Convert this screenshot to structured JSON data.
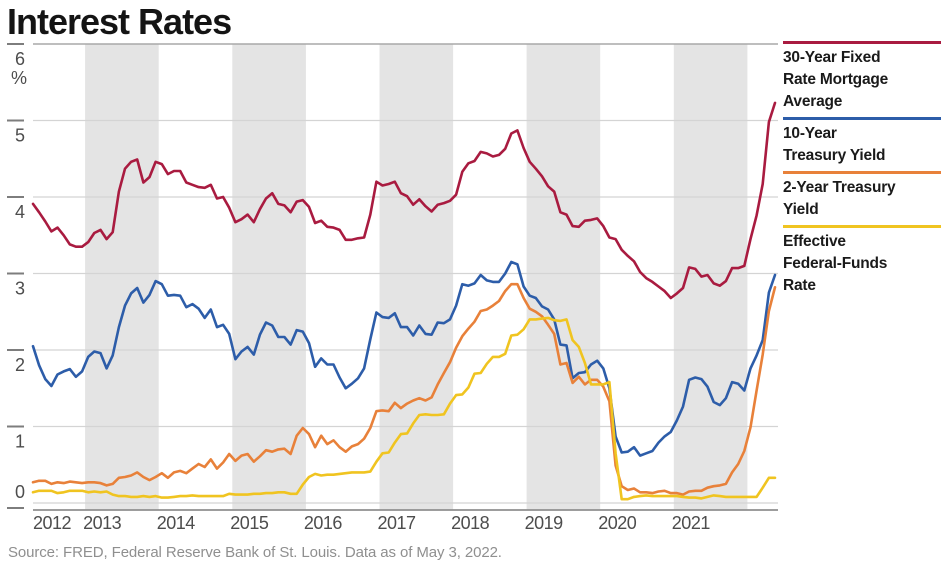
{
  "title": "Interest Rates",
  "source_note": "Source: FRED, Federal Reserve Bank of St. Louis. Data as of May 3, 2022.",
  "styles": {
    "band_color": "#e4e4e4",
    "grid_color": "#d4d4d4",
    "top_grid_color": "#a8a8a8",
    "axis_color": "#8f8f8f",
    "tick_color": "#7d7d7d",
    "label_color": "#4d4d4d",
    "title_color": "#141414",
    "source_color": "#8f8f8f"
  },
  "chart_data": {
    "type": "line",
    "title": "Interest Rates",
    "y_unit": "%",
    "ylim": [
      0,
      6
    ],
    "yticks": [
      6,
      5,
      4,
      3,
      2,
      1,
      0
    ],
    "x_tick_years": [
      2012,
      2013,
      2014,
      2015,
      2016,
      2017,
      2018,
      2019,
      2020,
      2021
    ],
    "shaded_years": [
      2013,
      2015,
      2017,
      2019,
      2021
    ],
    "grid": true,
    "legend_position": "right",
    "frequency": "monthly",
    "start": {
      "year": 2012,
      "month": 4
    },
    "end": {
      "year": 2022,
      "month": 5
    },
    "series": [
      {
        "id": "mortgage-30y",
        "name": "30-Year Fixed Rate Mortgage Average",
        "name_lines": [
          "30-Year Fixed",
          "Rate Mortgage",
          "Average"
        ],
        "color": "#a91b40",
        "values": [
          3.91,
          3.8,
          3.68,
          3.55,
          3.6,
          3.5,
          3.38,
          3.35,
          3.35,
          3.41,
          3.53,
          3.57,
          3.45,
          3.54,
          4.07,
          4.37,
          4.46,
          4.49,
          4.19,
          4.26,
          4.46,
          4.43,
          4.3,
          4.34,
          4.34,
          4.19,
          4.16,
          4.13,
          4.12,
          4.16,
          3.98,
          4.0,
          3.86,
          3.67,
          3.71,
          3.77,
          3.67,
          3.84,
          3.98,
          4.05,
          3.91,
          3.89,
          3.8,
          3.94,
          3.96,
          3.87,
          3.66,
          3.69,
          3.61,
          3.6,
          3.57,
          3.44,
          3.44,
          3.46,
          3.47,
          3.77,
          4.2,
          4.15,
          4.17,
          4.2,
          4.05,
          4.01,
          3.9,
          3.97,
          3.88,
          3.81,
          3.9,
          3.92,
          3.95,
          4.03,
          4.33,
          4.44,
          4.47,
          4.59,
          4.57,
          4.53,
          4.55,
          4.63,
          4.83,
          4.87,
          4.64,
          4.46,
          4.37,
          4.27,
          4.14,
          4.07,
          3.8,
          3.77,
          3.62,
          3.61,
          3.69,
          3.7,
          3.72,
          3.62,
          3.47,
          3.45,
          3.31,
          3.23,
          3.16,
          3.02,
          2.94,
          2.89,
          2.83,
          2.77,
          2.68,
          2.74,
          2.81,
          3.08,
          3.06,
          2.96,
          2.98,
          2.87,
          2.84,
          2.9,
          3.07,
          3.07,
          3.1,
          3.45,
          3.76,
          4.17,
          4.98,
          5.23
        ]
      },
      {
        "id": "treasury-10y",
        "name": "10-Year Treasury Yield",
        "name_lines": [
          "10-Year",
          "Treasury Yield"
        ],
        "color": "#2d5da9",
        "values": [
          2.05,
          1.8,
          1.62,
          1.53,
          1.68,
          1.72,
          1.75,
          1.65,
          1.72,
          1.91,
          1.98,
          1.96,
          1.76,
          1.93,
          2.3,
          2.58,
          2.74,
          2.81,
          2.62,
          2.72,
          2.9,
          2.86,
          2.71,
          2.72,
          2.71,
          2.56,
          2.6,
          2.54,
          2.42,
          2.53,
          2.3,
          2.33,
          2.21,
          1.88,
          1.98,
          2.04,
          1.94,
          2.2,
          2.36,
          2.32,
          2.17,
          2.17,
          2.07,
          2.26,
          2.24,
          2.09,
          1.78,
          1.89,
          1.81,
          1.81,
          1.64,
          1.5,
          1.56,
          1.63,
          1.76,
          2.14,
          2.49,
          2.43,
          2.42,
          2.48,
          2.3,
          2.3,
          2.19,
          2.32,
          2.21,
          2.2,
          2.36,
          2.35,
          2.4,
          2.58,
          2.86,
          2.84,
          2.87,
          2.98,
          2.91,
          2.89,
          2.89,
          3.0,
          3.15,
          3.12,
          2.83,
          2.71,
          2.68,
          2.57,
          2.53,
          2.4,
          2.07,
          2.06,
          1.63,
          1.7,
          1.71,
          1.81,
          1.86,
          1.76,
          1.5,
          0.87,
          0.66,
          0.67,
          0.73,
          0.62,
          0.65,
          0.68,
          0.79,
          0.87,
          0.93,
          1.08,
          1.26,
          1.61,
          1.64,
          1.62,
          1.52,
          1.32,
          1.28,
          1.37,
          1.58,
          1.56,
          1.47,
          1.76,
          1.93,
          2.13,
          2.75,
          2.98
        ]
      },
      {
        "id": "treasury-2y",
        "name": "2-Year Treasury Yield",
        "name_lines": [
          "2-Year Treasury",
          "Yield"
        ],
        "color": "#e8813a",
        "values": [
          0.27,
          0.29,
          0.29,
          0.25,
          0.27,
          0.26,
          0.28,
          0.27,
          0.26,
          0.27,
          0.27,
          0.26,
          0.23,
          0.25,
          0.33,
          0.34,
          0.36,
          0.4,
          0.34,
          0.3,
          0.34,
          0.39,
          0.33,
          0.4,
          0.42,
          0.39,
          0.45,
          0.51,
          0.47,
          0.57,
          0.45,
          0.53,
          0.64,
          0.55,
          0.62,
          0.64,
          0.54,
          0.61,
          0.69,
          0.67,
          0.7,
          0.71,
          0.64,
          0.88,
          0.98,
          0.9,
          0.73,
          0.88,
          0.77,
          0.82,
          0.73,
          0.67,
          0.74,
          0.77,
          0.84,
          0.98,
          1.2,
          1.21,
          1.2,
          1.31,
          1.24,
          1.3,
          1.34,
          1.37,
          1.34,
          1.38,
          1.55,
          1.7,
          1.84,
          2.03,
          2.18,
          2.28,
          2.37,
          2.51,
          2.53,
          2.58,
          2.64,
          2.77,
          2.86,
          2.86,
          2.68,
          2.54,
          2.5,
          2.44,
          2.33,
          2.21,
          1.81,
          1.83,
          1.57,
          1.65,
          1.55,
          1.61,
          1.61,
          1.52,
          1.33,
          0.49,
          0.22,
          0.17,
          0.19,
          0.14,
          0.14,
          0.13,
          0.15,
          0.16,
          0.13,
          0.13,
          0.11,
          0.15,
          0.16,
          0.16,
          0.2,
          0.22,
          0.23,
          0.25,
          0.4,
          0.51,
          0.68,
          0.99,
          1.47,
          1.94,
          2.51,
          2.82
        ]
      },
      {
        "id": "effective-federal-funds-rate",
        "name": "Effective Federal-Funds Rate",
        "name_lines": [
          "Effective",
          "Federal-Funds",
          "Rate"
        ],
        "color": "#f0c420",
        "values": [
          0.14,
          0.16,
          0.16,
          0.16,
          0.13,
          0.14,
          0.16,
          0.16,
          0.16,
          0.14,
          0.15,
          0.14,
          0.15,
          0.11,
          0.09,
          0.09,
          0.08,
          0.08,
          0.09,
          0.08,
          0.09,
          0.07,
          0.07,
          0.08,
          0.09,
          0.09,
          0.1,
          0.09,
          0.09,
          0.09,
          0.09,
          0.09,
          0.12,
          0.11,
          0.11,
          0.11,
          0.12,
          0.12,
          0.13,
          0.13,
          0.14,
          0.14,
          0.12,
          0.12,
          0.24,
          0.34,
          0.38,
          0.36,
          0.37,
          0.37,
          0.38,
          0.39,
          0.4,
          0.4,
          0.4,
          0.41,
          0.54,
          0.65,
          0.66,
          0.79,
          0.9,
          0.91,
          1.04,
          1.15,
          1.16,
          1.15,
          1.15,
          1.16,
          1.3,
          1.41,
          1.42,
          1.51,
          1.69,
          1.7,
          1.82,
          1.91,
          1.91,
          1.95,
          2.19,
          2.2,
          2.27,
          2.4,
          2.4,
          2.41,
          2.42,
          2.39,
          2.38,
          2.4,
          2.13,
          2.04,
          1.83,
          1.55,
          1.55,
          1.55,
          1.58,
          0.65,
          0.05,
          0.05,
          0.08,
          0.09,
          0.1,
          0.09,
          0.09,
          0.09,
          0.09,
          0.09,
          0.08,
          0.07,
          0.07,
          0.06,
          0.08,
          0.1,
          0.09,
          0.08,
          0.08,
          0.08,
          0.08,
          0.08,
          0.08,
          0.2,
          0.33,
          0.33
        ]
      }
    ]
  }
}
